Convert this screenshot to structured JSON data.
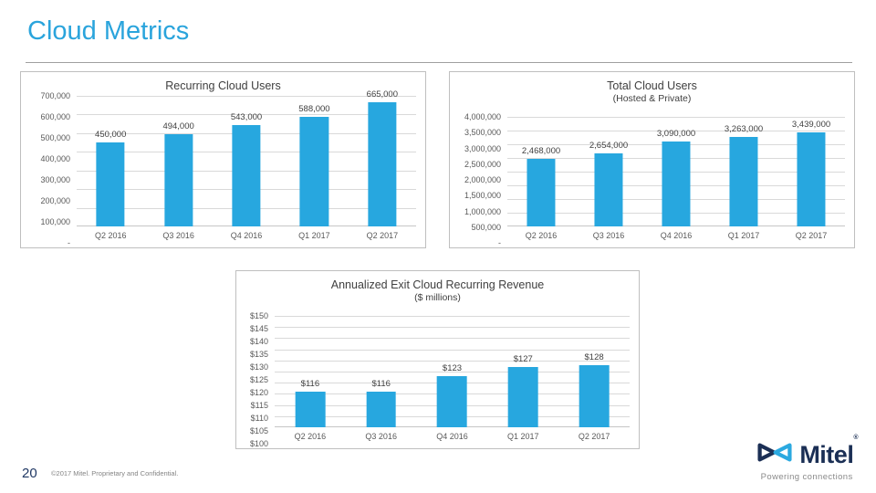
{
  "slide": {
    "title": "Cloud Metrics",
    "page_number": "20",
    "copyright": "©2017 Mitel. Proprietary and Confidential.",
    "logo": {
      "brand": "Mitel",
      "registered": "®",
      "tagline": "Powering connections"
    }
  },
  "colors": {
    "accent_blue": "#2AA4DC",
    "bar_blue": "#27A7DF",
    "logo_navy": "#1B2F55",
    "logo_light_blue": "#2BA9E0",
    "grid_gray": "#D9D9D9",
    "border_gray": "#BFBFBF",
    "tick_text_gray": "#595959"
  },
  "chart_data": [
    {
      "type": "bar",
      "title": "Recurring Cloud Users",
      "subtitle": "",
      "categories": [
        "Q2 2016",
        "Q3 2016",
        "Q4 2016",
        "Q1 2017",
        "Q2 2017"
      ],
      "values": [
        450000,
        494000,
        543000,
        588000,
        665000
      ],
      "value_labels": [
        "450,000",
        "494,000",
        "543,000",
        "588,000",
        "665,000"
      ],
      "xlabel": "",
      "ylabel": "",
      "ylim": [
        0,
        700000
      ],
      "yticks": [
        700000,
        600000,
        500000,
        400000,
        300000,
        200000,
        100000,
        0
      ],
      "ytick_labels": [
        "700,000",
        "600,000",
        "500,000",
        "400,000",
        "300,000",
        "200,000",
        "100,000",
        "-"
      ],
      "grid": true,
      "legend": "none"
    },
    {
      "type": "bar",
      "title": "Total Cloud Users",
      "subtitle": "(Hosted & Private)",
      "categories": [
        "Q2 2016",
        "Q3 2016",
        "Q4 2016",
        "Q1 2017",
        "Q2 2017"
      ],
      "values": [
        2468000,
        2654000,
        3090000,
        3263000,
        3439000
      ],
      "value_labels": [
        "2,468,000",
        "2,654,000",
        "3,090,000",
        "3,263,000",
        "3,439,000"
      ],
      "xlabel": "",
      "ylabel": "",
      "ylim": [
        0,
        4000000
      ],
      "yticks": [
        4000000,
        3500000,
        3000000,
        2500000,
        2000000,
        1500000,
        1000000,
        500000,
        0
      ],
      "ytick_labels": [
        "4,000,000",
        "3,500,000",
        "3,000,000",
        "2,500,000",
        "2,000,000",
        "1,500,000",
        "1,000,000",
        "500,000",
        "-"
      ],
      "grid": true,
      "legend": "none"
    },
    {
      "type": "bar",
      "title": "Annualized Exit Cloud Recurring Revenue",
      "subtitle": "($ millions)",
      "categories": [
        "Q2 2016",
        "Q3 2016",
        "Q4 2016",
        "Q1 2017",
        "Q2 2017"
      ],
      "values": [
        116,
        116,
        123,
        127,
        128
      ],
      "value_labels": [
        "$116",
        "$116",
        "$123",
        "$127",
        "$128"
      ],
      "xlabel": "",
      "ylabel": "",
      "ylim": [
        100,
        150
      ],
      "yticks": [
        150,
        145,
        140,
        135,
        130,
        125,
        120,
        115,
        110,
        105,
        100
      ],
      "ytick_labels": [
        "$150",
        "$145",
        "$140",
        "$135",
        "$130",
        "$125",
        "$120",
        "$115",
        "$110",
        "$105",
        "$100"
      ],
      "grid": true,
      "legend": "none"
    }
  ]
}
